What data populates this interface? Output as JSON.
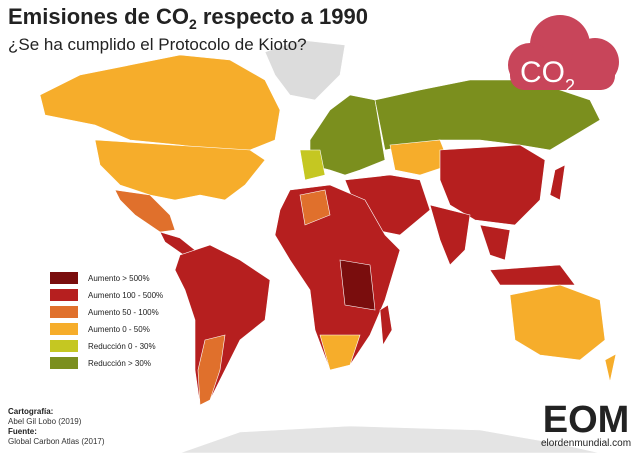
{
  "header": {
    "title": {
      "before": "Emisiones de CO",
      "subscript": "2",
      "after": " respecto a 1990"
    },
    "subtitle": "¿Se ha cumplido el Protocolo de Kioto?"
  },
  "icon": {
    "text": "CO",
    "subscript": "2",
    "color": "#c8455a"
  },
  "legend": {
    "items": [
      {
        "label": "Aumento > 500%",
        "color": "#7a0d0d"
      },
      {
        "label": "Aumento 100 - 500%",
        "color": "#b61f1f"
      },
      {
        "label": "Aumento 50 - 100%",
        "color": "#e0702c"
      },
      {
        "label": "Aumento 0 - 50%",
        "color": "#f6ad2b"
      },
      {
        "label": "Reducción 0 - 30%",
        "color": "#c5c722"
      },
      {
        "label": "Reducción > 30%",
        "color": "#7b8f1e"
      }
    ]
  },
  "credits": {
    "cartography_label": "Cartografía:",
    "cartography": "Abel Gil Lobo (2019)",
    "source_label": "Fuente:",
    "source": "Global Carbon Atlas (2017)"
  },
  "logo": {
    "name": "EOM",
    "site": "elordenmundial.com"
  }
}
